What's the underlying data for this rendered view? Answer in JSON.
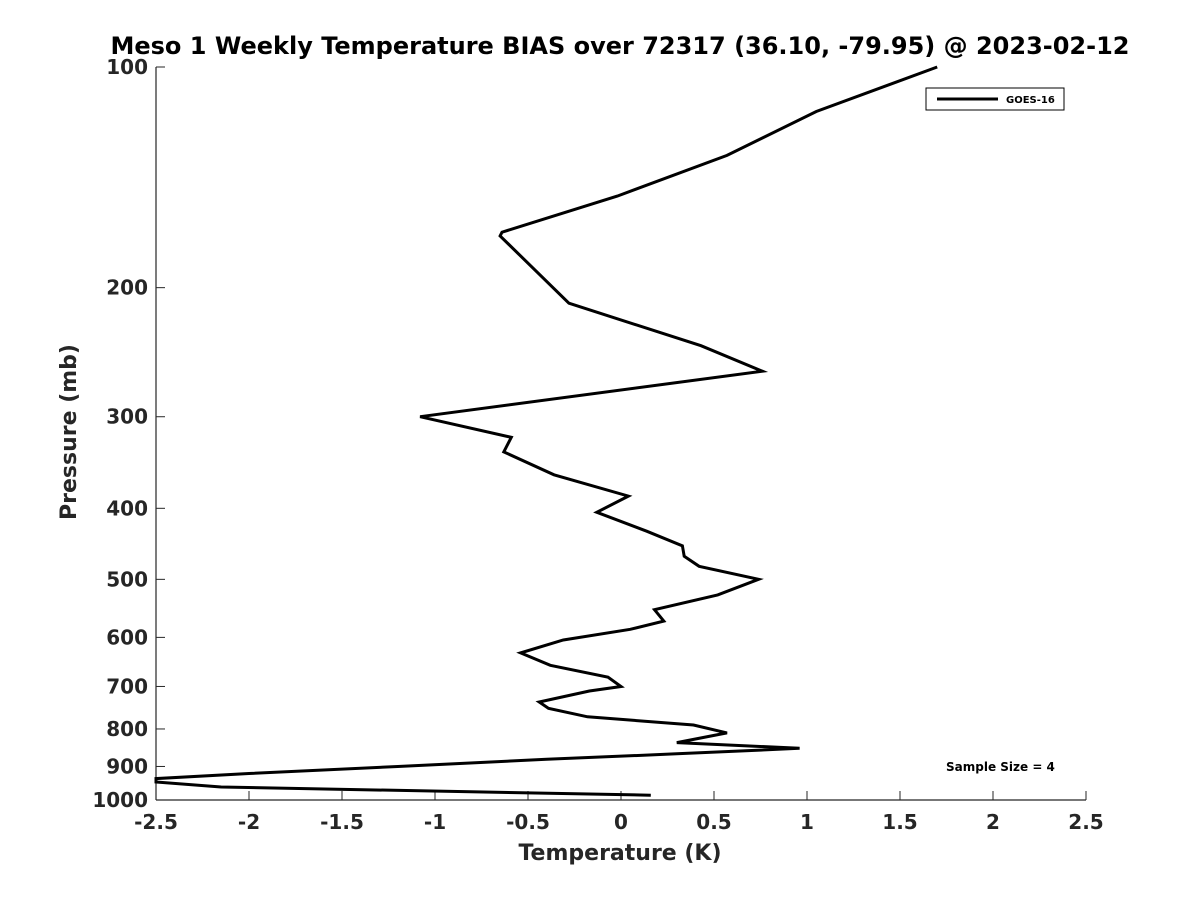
{
  "chart_data": {
    "type": "line",
    "title": "Meso 1 Weekly Temperature BIAS over 72317 (36.10, -79.95) @ 2023-02-12",
    "xlabel": "Temperature (K)",
    "ylabel": "Pressure (mb)",
    "xlim": [
      -2.5,
      2.5
    ],
    "ylim": [
      100,
      1000
    ],
    "y_scale": "log",
    "y_reversed": true,
    "xticks": [
      "-2.5",
      "-2",
      "-1.5",
      "-1",
      "-0.5",
      "0",
      "0.5",
      "1",
      "1.5",
      "2",
      "2.5"
    ],
    "yticks": [
      "100",
      "200",
      "300",
      "400",
      "500",
      "600",
      "700",
      "800",
      "900",
      "1000"
    ],
    "legend_position": "top-right",
    "grid": false,
    "annotation": "Sample Size = 4",
    "series": [
      {
        "name": "GOES-16",
        "color": "#000000",
        "x": [
          1.7,
          1.05,
          0.57,
          -0.02,
          -0.64,
          -0.65,
          -0.28,
          0.43,
          0.76,
          -1.08,
          -0.59,
          -0.63,
          -0.36,
          0.04,
          -0.13,
          0.14,
          0.33,
          0.34,
          0.42,
          0.74,
          0.52,
          0.18,
          0.23,
          0.05,
          -0.31,
          -0.54,
          -0.38,
          -0.07,
          0.0,
          -0.17,
          -0.44,
          -0.39,
          -0.18,
          0.39,
          0.57,
          0.3,
          0.96,
          0.3,
          -0.4,
          -1.2,
          -2.0,
          -2.5,
          -2.5,
          -2.15,
          0.16
        ],
        "y": [
          100,
          115,
          132,
          150,
          168,
          170,
          210,
          240,
          260,
          300,
          320,
          335,
          360,
          385,
          405,
          430,
          450,
          465,
          480,
          500,
          525,
          550,
          570,
          585,
          605,
          630,
          655,
          680,
          700,
          710,
          735,
          750,
          770,
          790,
          810,
          835,
          850,
          865,
          880,
          900,
          920,
          935,
          945,
          960,
          985
        ]
      }
    ]
  }
}
